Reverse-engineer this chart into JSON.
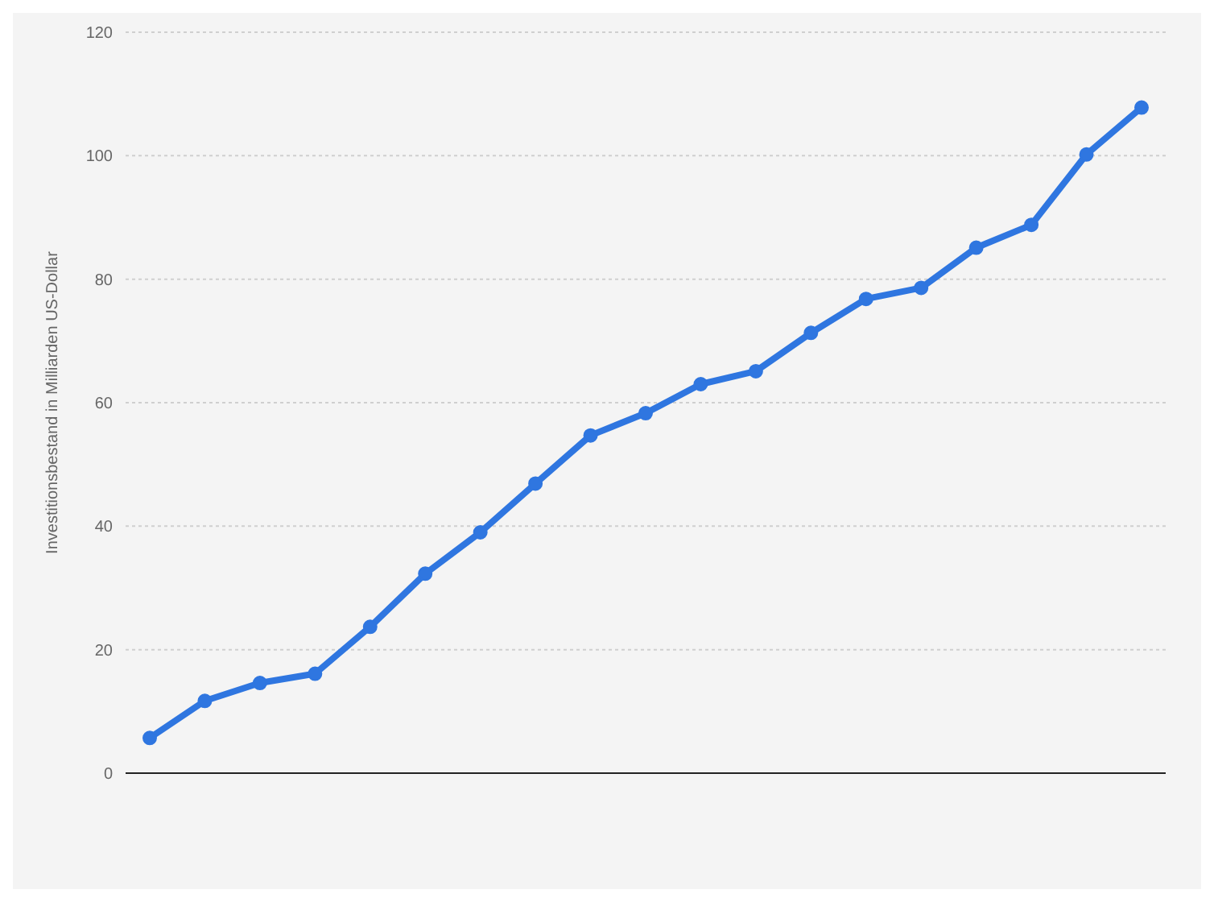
{
  "chart_data": {
    "type": "line",
    "ylabel": "Investitionsbestand in Milliarden US-Dollar",
    "categories": [
      null,
      null,
      null,
      null,
      null,
      null,
      null,
      null,
      null,
      null,
      null,
      null,
      null,
      null,
      null,
      null,
      null,
      null,
      null
    ],
    "series": [
      {
        "color": "#2f76e0",
        "values": [
          5.7,
          11.7,
          14.6,
          16.1,
          23.7,
          32.3,
          39.0,
          46.9,
          54.7,
          58.3,
          63.0,
          65.1,
          71.3,
          76.8,
          78.6,
          85.1,
          88.8,
          100.2,
          107.8
        ]
      }
    ],
    "ylim": [
      0,
      120
    ],
    "yticks": [
      0,
      20,
      40,
      60,
      80,
      100,
      120
    ],
    "grid": "y",
    "marker": "circle",
    "line_style": "solid"
  }
}
